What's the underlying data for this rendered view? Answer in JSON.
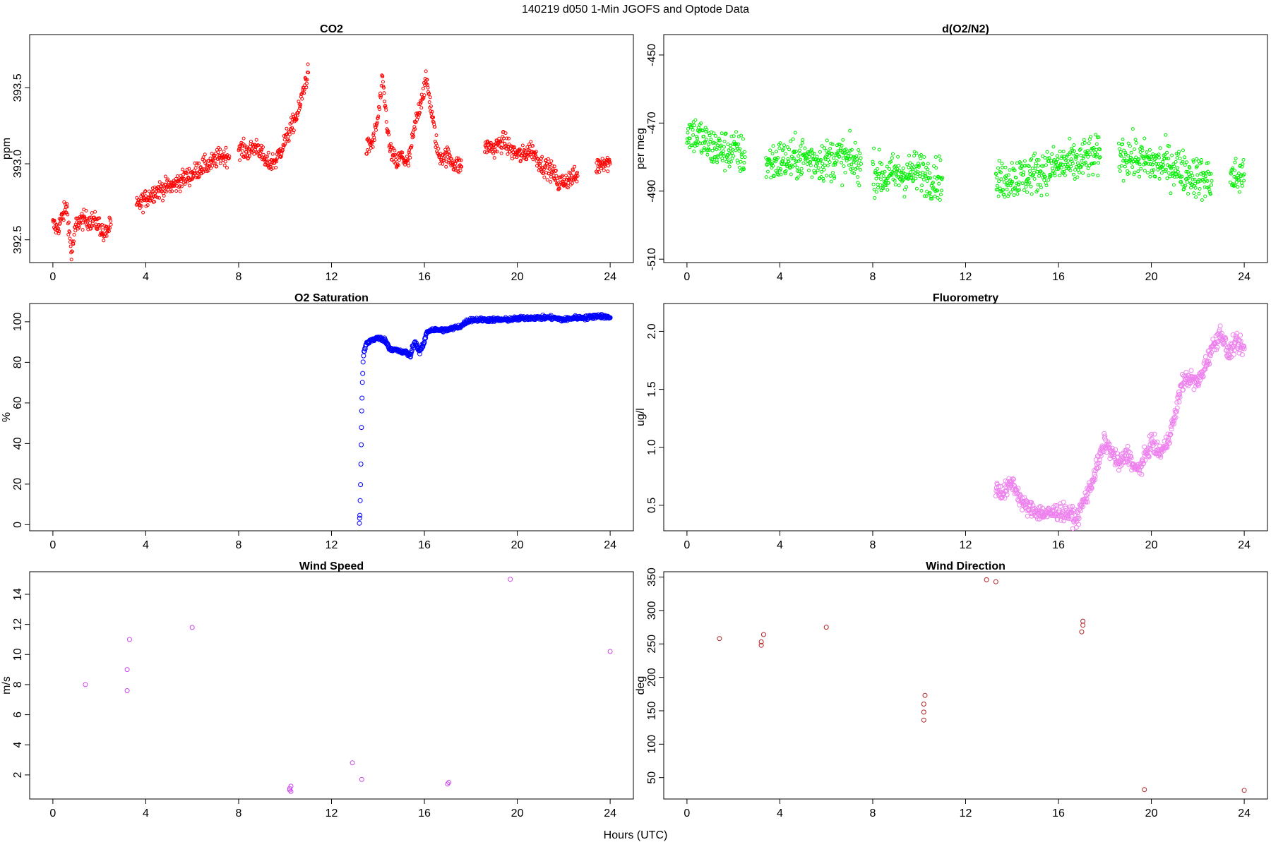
{
  "figure": {
    "title": "140219   d050   1-Min  JGOFS and Optode Data",
    "xlabel": "Hours (UTC)"
  },
  "chart_data": [
    {
      "type": "scatter",
      "title": "CO2",
      "xlabel": "",
      "ylabel": "ppm",
      "xlim": [
        -1.0,
        25.0
      ],
      "ylim": [
        392.35,
        393.85
      ],
      "xticks": [
        0,
        4,
        8,
        12,
        16,
        20,
        24
      ],
      "yticks": [
        392.5,
        393.0,
        393.5
      ],
      "ytick_labels": [
        "392.5",
        "393.0",
        "393.5"
      ],
      "marker_color": "#ff0000",
      "marker_size": "small",
      "series": [
        {
          "segments": [
            {
              "x": [
                0.0,
                0.2,
                0.4,
                0.6,
                0.8,
                1.0,
                1.2,
                1.5,
                1.8,
                2.0,
                2.2,
                2.5
              ],
              "y": [
                392.6,
                392.57,
                392.65,
                392.72,
                392.4,
                392.6,
                392.63,
                392.63,
                392.62,
                392.6,
                392.53,
                392.6
              ]
            },
            {
              "x": [
                3.6,
                4.0,
                4.4,
                4.8,
                5.2,
                5.6,
                6.0,
                6.4,
                6.8,
                7.2,
                7.6
              ],
              "y": [
                392.72,
                392.77,
                392.82,
                392.84,
                392.86,
                392.9,
                392.93,
                392.98,
                393.0,
                393.05,
                393.05
              ]
            },
            {
              "x": [
                8.0,
                8.4,
                8.8,
                9.2,
                9.6,
                10.0,
                10.3,
                10.6,
                10.8,
                11.0
              ],
              "y": [
                393.1,
                393.08,
                393.12,
                393.0,
                393.02,
                393.15,
                393.25,
                393.35,
                393.5,
                393.6
              ]
            },
            {
              "x": [
                13.5,
                13.8,
                14.0,
                14.2,
                14.5,
                14.8,
                15.0,
                15.3,
                15.6,
                15.9,
                16.1,
                16.3,
                16.6,
                17.0,
                17.3,
                17.6
              ],
              "y": [
                393.1,
                393.15,
                393.3,
                393.55,
                393.1,
                393.0,
                393.05,
                393.0,
                393.25,
                393.45,
                393.55,
                393.35,
                393.05,
                393.05,
                393.0,
                392.98
              ]
            },
            {
              "x": [
                18.6,
                19.0,
                19.4,
                19.8,
                20.2,
                20.6,
                21.0,
                21.5,
                21.8,
                22.2,
                22.6
              ],
              "y": [
                393.12,
                393.1,
                393.15,
                393.08,
                393.05,
                393.1,
                393.0,
                392.95,
                392.87,
                392.9,
                392.92
              ]
            },
            {
              "x": [
                23.4,
                23.7,
                24.0
              ],
              "y": [
                392.98,
                393.02,
                393.0
              ]
            }
          ],
          "noise": 0.05
        }
      ]
    },
    {
      "type": "scatter",
      "title": "d(O2/N2)",
      "xlabel": "",
      "ylabel": "per meg",
      "xlim": [
        -1.0,
        25.0
      ],
      "ylim": [
        -511,
        -444
      ],
      "xticks": [
        0,
        4,
        8,
        12,
        16,
        20,
        24
      ],
      "yticks": [
        -510,
        -490,
        -470,
        -450
      ],
      "ytick_labels": [
        "-510",
        "-490",
        "-470",
        "-450"
      ],
      "marker_color": "#00ee00",
      "marker_size": "small",
      "series": [
        {
          "segments": [
            {
              "x": [
                0.0,
                0.5,
                1.0,
                1.5,
                2.0,
                2.5
              ],
              "y": [
                -472,
                -474,
                -477,
                -478,
                -478,
                -480
              ]
            },
            {
              "x": [
                3.4,
                4.0,
                4.5,
                5.0,
                5.5,
                6.0,
                6.5,
                7.0,
                7.5
              ],
              "y": [
                -482,
                -481,
                -481,
                -480,
                -481,
                -481,
                -480,
                -481,
                -482
              ]
            },
            {
              "x": [
                8.0,
                8.5,
                9.0,
                9.5,
                10.0,
                10.5,
                11.0
              ],
              "y": [
                -484,
                -486,
                -485,
                -485,
                -484,
                -486,
                -486
              ]
            },
            {
              "x": [
                13.3,
                13.8,
                14.3,
                14.8,
                15.3,
                15.8,
                16.3,
                16.8,
                17.3,
                17.8
              ],
              "y": [
                -488,
                -486,
                -486,
                -485,
                -484,
                -483,
                -482,
                -482,
                -480,
                -480
              ]
            },
            {
              "x": [
                18.6,
                19.1,
                19.6,
                20.1,
                20.6,
                21.1,
                21.6,
                22.1,
                22.6
              ],
              "y": [
                -479,
                -480,
                -481,
                -482,
                -482,
                -483,
                -485,
                -486,
                -487
              ]
            },
            {
              "x": [
                23.4,
                23.7,
                24.0
              ],
              "y": [
                -486,
                -486,
                -485
              ]
            }
          ],
          "noise": 5
        }
      ]
    },
    {
      "type": "scatter",
      "title": "O2 Saturation",
      "xlabel": "",
      "ylabel": "%",
      "xlim": [
        -1.0,
        25.0
      ],
      "ylim": [
        -3,
        109
      ],
      "xticks": [
        0,
        4,
        8,
        12,
        16,
        20,
        24
      ],
      "yticks": [
        0,
        20,
        40,
        60,
        80,
        100
      ],
      "ytick_labels": [
        "0",
        "20",
        "40",
        "60",
        "80",
        "100"
      ],
      "marker_color": "#0000ff",
      "marker_size": "normal",
      "series": [
        {
          "segments": [
            {
              "x": [
                13.2,
                13.22,
                13.25,
                13.28,
                13.3,
                13.33,
                13.36,
                13.4,
                13.5,
                13.7,
                14.0,
                14.3,
                14.5,
                14.8,
                15.0,
                15.2,
                15.4,
                15.5,
                15.6,
                15.8,
                16.0,
                16.1,
                16.3,
                16.6,
                17.0,
                17.3,
                17.6,
                17.8,
                18.0,
                18.5,
                19.0,
                19.5,
                20.0,
                20.5,
                21.0,
                21.5,
                22.0,
                22.5,
                23.0,
                23.5,
                24.0
              ],
              "y": [
                1,
                5,
                20,
                40,
                55,
                70,
                80,
                85,
                89,
                91,
                92,
                91,
                87,
                86,
                85,
                85,
                83,
                88,
                90,
                85,
                90,
                95,
                96,
                96,
                96,
                97,
                98,
                100,
                101,
                101,
                101,
                101,
                101.5,
                102,
                102,
                102,
                101,
                102,
                102,
                103,
                102
              ]
            }
          ],
          "noise": 0.8
        }
      ]
    },
    {
      "type": "scatter",
      "title": "Fluorometry",
      "xlabel": "",
      "ylabel": "ug/l",
      "xlim": [
        -1.0,
        25.0
      ],
      "ylim": [
        0.28,
        2.24
      ],
      "xticks": [
        0,
        4,
        8,
        12,
        16,
        20,
        24
      ],
      "yticks": [
        0.5,
        1.0,
        1.5,
        2.0
      ],
      "ytick_labels": [
        "0.5",
        "1.0",
        "1.5",
        "2.0"
      ],
      "marker_color": "#ee82ee",
      "marker_size": "normal",
      "series": [
        {
          "segments": [
            {
              "x": [
                13.3,
                13.6,
                14.0,
                14.5,
                15.0,
                15.5,
                16.0,
                16.5,
                16.8,
                17.0,
                17.3,
                17.6,
                18.0,
                18.3,
                18.6,
                19.0,
                19.3,
                19.6,
                20.0,
                20.3,
                20.6,
                21.0,
                21.3,
                21.6,
                22.0,
                22.3,
                22.6,
                23.0,
                23.3,
                23.6,
                24.0
              ],
              "y": [
                0.65,
                0.6,
                0.7,
                0.5,
                0.45,
                0.42,
                0.45,
                0.42,
                0.38,
                0.5,
                0.62,
                0.8,
                1.05,
                0.95,
                0.85,
                0.95,
                0.8,
                0.85,
                1.05,
                0.95,
                1.0,
                1.25,
                1.55,
                1.6,
                1.55,
                1.7,
                1.85,
                2.0,
                1.8,
                1.9,
                1.85
              ]
            }
          ],
          "noise": 0.06
        }
      ]
    },
    {
      "type": "scatter",
      "title": "Wind Speed",
      "xlabel": "",
      "ylabel": "m/s",
      "xlim": [
        -1.0,
        25.0
      ],
      "ylim": [
        0.4,
        15.5
      ],
      "xticks": [
        0,
        4,
        8,
        12,
        16,
        20,
        24
      ],
      "yticks": [
        2,
        4,
        6,
        8,
        10,
        12,
        14
      ],
      "ytick_labels": [
        "2",
        "4",
        "6",
        "8",
        "10",
        "12",
        "14"
      ],
      "marker_color": "#cc44ee",
      "marker_size": "normal",
      "series": [
        {
          "x": [
            1.4,
            3.2,
            3.2,
            3.3,
            6.0,
            10.2,
            10.2,
            10.25,
            10.25,
            12.9,
            13.3,
            17.0,
            17.05,
            19.7,
            24.0
          ],
          "y": [
            8.0,
            7.6,
            9.0,
            11.0,
            11.8,
            1.0,
            1.1,
            1.25,
            0.9,
            2.8,
            1.7,
            1.4,
            1.5,
            15.0,
            10.2
          ]
        }
      ]
    },
    {
      "type": "scatter",
      "title": "Wind Direction",
      "xlabel": "",
      "ylabel": "deg",
      "xlim": [
        -1.0,
        25.0
      ],
      "ylim": [
        18,
        358
      ],
      "xticks": [
        0,
        4,
        8,
        12,
        16,
        20,
        24
      ],
      "yticks": [
        50,
        100,
        150,
        200,
        250,
        300,
        350
      ],
      "ytick_labels": [
        "50",
        "100",
        "150",
        "200",
        "250",
        "300",
        "350"
      ],
      "marker_color": "#b22222",
      "marker_size": "normal",
      "series": [
        {
          "x": [
            1.4,
            3.2,
            3.2,
            3.3,
            6.0,
            10.2,
            10.2,
            10.2,
            10.25,
            12.9,
            13.3,
            17.0,
            17.05,
            17.05,
            19.7,
            24.0
          ],
          "y": [
            258,
            248,
            253,
            264,
            275,
            136,
            148,
            160,
            173,
            346,
            343,
            268,
            278,
            284,
            32,
            31
          ]
        }
      ]
    }
  ]
}
